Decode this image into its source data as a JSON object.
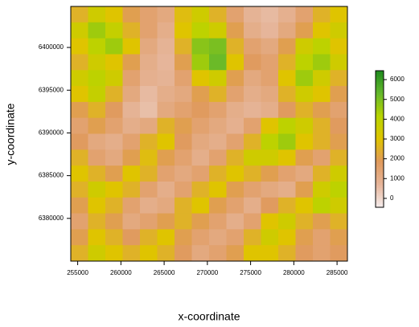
{
  "chart_data": {
    "type": "heatmap",
    "x_axis_label": "x-coordinate",
    "y_axis_label": "y-coordinate",
    "xlim": [
      254200,
      286200
    ],
    "xticks": [
      255000,
      260000,
      265000,
      270000,
      275000,
      280000,
      285000
    ],
    "ylim": [
      6375000,
      6404800
    ],
    "yticks": [
      6380000,
      6385000,
      6390000,
      6395000,
      6400000
    ],
    "zlim": [
      -450,
      6450
    ],
    "zticks": [
      0,
      1000,
      2000,
      3000,
      4000,
      5000,
      6000
    ],
    "colors": [
      "#f4ecec",
      "#e6b59a",
      "#e09a5c",
      "#dfc400",
      "#b8d400",
      "#64b82c",
      "#1e8a1e"
    ],
    "z": [
      [
        2500,
        3500,
        3000,
        2000,
        1500,
        1200,
        2800,
        3500,
        2500,
        1500,
        800,
        600,
        900,
        1500,
        2500,
        3000
      ],
      [
        3500,
        4500,
        3800,
        2500,
        1500,
        1000,
        3000,
        4000,
        3500,
        2000,
        1000,
        700,
        1200,
        2000,
        3000,
        3500
      ],
      [
        3000,
        4000,
        4500,
        3000,
        1200,
        800,
        2500,
        4800,
        5000,
        2500,
        1500,
        1200,
        2000,
        3500,
        4000,
        3000
      ],
      [
        2500,
        3500,
        3000,
        2000,
        1000,
        700,
        2000,
        4500,
        5200,
        3000,
        1800,
        1500,
        2500,
        4000,
        4500,
        3500
      ],
      [
        3500,
        4000,
        3500,
        1500,
        900,
        800,
        1500,
        3000,
        3500,
        2000,
        1200,
        1500,
        3000,
        4500,
        3500,
        2500
      ],
      [
        3000,
        3800,
        2500,
        1200,
        600,
        1000,
        1200,
        2000,
        2500,
        1500,
        1000,
        1200,
        2500,
        3500,
        3000,
        2000
      ],
      [
        2000,
        2500,
        1800,
        800,
        500,
        1200,
        1500,
        1800,
        1500,
        1000,
        800,
        1000,
        1800,
        2500,
        2000,
        1500
      ],
      [
        1500,
        2000,
        1500,
        1000,
        1200,
        2500,
        2000,
        1500,
        1200,
        900,
        1500,
        3000,
        4000,
        3500,
        2500,
        1800
      ],
      [
        1800,
        1200,
        1000,
        1500,
        2500,
        3000,
        1800,
        1200,
        1000,
        1500,
        2500,
        4000,
        4500,
        3000,
        2500,
        2000
      ],
      [
        2500,
        1500,
        1200,
        2000,
        2800,
        2000,
        1500,
        1000,
        1500,
        2500,
        3500,
        3500,
        3000,
        2000,
        1500,
        2500
      ],
      [
        3000,
        2500,
        2000,
        3000,
        2500,
        1500,
        1200,
        1500,
        2500,
        3000,
        2500,
        2000,
        1500,
        1200,
        2500,
        3500
      ],
      [
        2500,
        3500,
        3000,
        2500,
        1500,
        1000,
        1500,
        2500,
        3000,
        2000,
        1500,
        1200,
        1000,
        2000,
        3500,
        4000
      ],
      [
        2000,
        3000,
        2500,
        1500,
        1000,
        1200,
        2500,
        3000,
        2000,
        1500,
        1000,
        1800,
        2500,
        3000,
        4000,
        3500
      ],
      [
        1500,
        2500,
        2000,
        1200,
        1500,
        2000,
        2500,
        2000,
        1500,
        1000,
        1500,
        3000,
        3500,
        2500,
        2000,
        2500
      ],
      [
        2000,
        3000,
        2500,
        1800,
        2500,
        3000,
        2000,
        1500,
        1200,
        1500,
        2500,
        3500,
        3000,
        2000,
        1500,
        2000
      ],
      [
        2500,
        3500,
        3000,
        2500,
        3000,
        2500,
        1800,
        1200,
        1500,
        2000,
        3000,
        3000,
        2500,
        1800,
        1500,
        1800
      ]
    ]
  }
}
